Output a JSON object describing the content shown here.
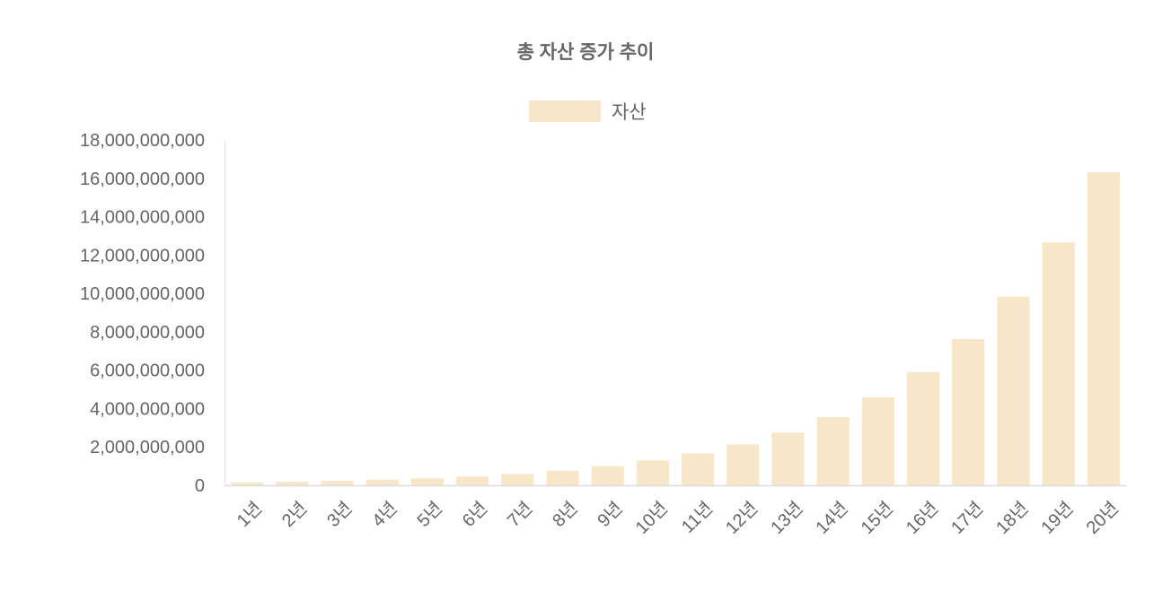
{
  "chart_data": {
    "type": "bar",
    "title": "총 자산 증가 추이",
    "legend": {
      "position": "top",
      "entries": [
        "자산"
      ]
    },
    "categories": [
      "1년",
      "2년",
      "3년",
      "4년",
      "5년",
      "6년",
      "7년",
      "8년",
      "9년",
      "10년",
      "11년",
      "12년",
      "13년",
      "14년",
      "15년",
      "16년",
      "17년",
      "18년",
      "19년",
      "20년"
    ],
    "series": [
      {
        "name": "자산",
        "color": "#f7e6c8",
        "values": [
          140000000,
          180000000,
          230000000,
          290000000,
          360000000,
          460000000,
          590000000,
          760000000,
          1000000000,
          1290000000,
          1660000000,
          2130000000,
          2740000000,
          3550000000,
          4580000000,
          5900000000,
          7620000000,
          9830000000,
          12660000000,
          16310000000
        ]
      }
    ],
    "yticks": [
      "0",
      "2,000,000,000",
      "4,000,000,000",
      "6,000,000,000",
      "8,000,000,000",
      "10,000,000,000",
      "12,000,000,000",
      "14,000,000,000",
      "16,000,000,000",
      "18,000,000,000"
    ],
    "ylim": [
      0,
      18000000000
    ],
    "grid": false,
    "xlabel": "",
    "ylabel": ""
  }
}
